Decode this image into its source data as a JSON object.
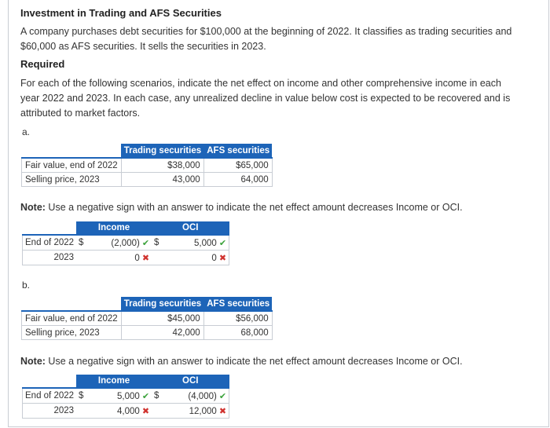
{
  "title": "Investment in Trading and AFS Securities",
  "intro_line1": "A company purchases debt securities for $100,000 at the beginning of 2022. It classifies as trading securities and",
  "intro_line2": "$60,000 as AFS securities. It sells the securities in 2023.",
  "required_label": "Required",
  "required_line1": "For each of the following scenarios, indicate the net effect on income and other comprehensive income in each",
  "required_line2": "year 2022 and 2023. In each case, any unrealized decline in value below cost is expected to be recovered and is",
  "required_line3": "attributed to market factors.",
  "note_label": "Note:",
  "note_text": " Use a negative sign with an answer to indicate the net effect amount decreases Income or OCI.",
  "scenarios": [
    {
      "label": "a.",
      "data_table": {
        "headers": [
          "Trading securities",
          "AFS securities"
        ],
        "rows": [
          {
            "label": "Fair value, end of 2022",
            "trading": "$38,000",
            "afs": "$65,000"
          },
          {
            "label": "Selling price, 2023",
            "trading": "43,000",
            "afs": "64,000"
          }
        ]
      },
      "answer_table": {
        "headers": [
          "Income",
          "OCI"
        ],
        "rows": [
          {
            "year": "End of 2022",
            "dollar1": "$",
            "income": "(2,000)",
            "income_status": "correct",
            "dollar2": "$",
            "oci": "5,000",
            "oci_status": "correct"
          },
          {
            "year": "2023",
            "dollar1": "",
            "income": "0",
            "income_status": "incorrect",
            "dollar2": "",
            "oci": "0",
            "oci_status": "incorrect"
          }
        ]
      }
    },
    {
      "label": "b.",
      "data_table": {
        "headers": [
          "Trading securities",
          "AFS securities"
        ],
        "rows": [
          {
            "label": "Fair value, end of 2022",
            "trading": "$45,000",
            "afs": "$56,000"
          },
          {
            "label": "Selling price, 2023",
            "trading": "42,000",
            "afs": "68,000"
          }
        ]
      },
      "answer_table": {
        "headers": [
          "Income",
          "OCI"
        ],
        "rows": [
          {
            "year": "End of 2022",
            "dollar1": "$",
            "income": "5,000",
            "income_status": "correct",
            "dollar2": "$",
            "oci": "(4,000)",
            "oci_status": "correct"
          },
          {
            "year": "2023",
            "dollar1": "",
            "income": "4,000",
            "income_status": "incorrect",
            "dollar2": "",
            "oci": "12,000",
            "oci_status": "incorrect"
          }
        ]
      }
    }
  ],
  "colors": {
    "header_blue": "#1d64b8",
    "correct_green": "#3aa23a",
    "incorrect_red": "#d0312d"
  },
  "icons": {
    "correct": "check-icon",
    "incorrect": "x-icon"
  }
}
